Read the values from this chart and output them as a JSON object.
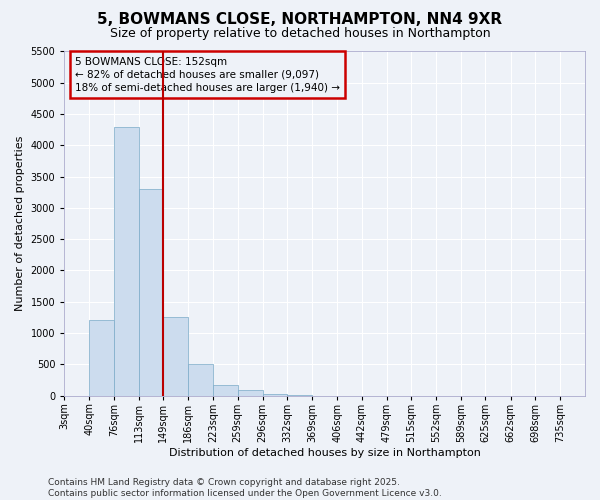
{
  "title": "5, BOWMANS CLOSE, NORTHAMPTON, NN4 9XR",
  "subtitle": "Size of property relative to detached houses in Northampton",
  "xlabel": "Distribution of detached houses by size in Northampton",
  "ylabel": "Number of detached properties",
  "categories": [
    "3sqm",
    "40sqm",
    "76sqm",
    "113sqm",
    "149sqm",
    "186sqm",
    "223sqm",
    "259sqm",
    "296sqm",
    "332sqm",
    "369sqm",
    "406sqm",
    "442sqm",
    "479sqm",
    "515sqm",
    "552sqm",
    "589sqm",
    "625sqm",
    "662sqm",
    "698sqm",
    "735sqm"
  ],
  "bin_edges": [
    3,
    40,
    76,
    113,
    149,
    186,
    223,
    259,
    296,
    332,
    369,
    406,
    442,
    479,
    515,
    552,
    589,
    625,
    662,
    698,
    735,
    772
  ],
  "bar_heights": [
    0,
    1200,
    4300,
    3300,
    1250,
    500,
    160,
    80,
    30,
    5,
    0,
    0,
    0,
    0,
    0,
    0,
    0,
    0,
    0,
    0,
    0
  ],
  "bar_color": "#ccdcee",
  "bar_edge_color": "#7aaac8",
  "vline_x": 149,
  "vline_color": "#bb0000",
  "ylim": [
    0,
    5500
  ],
  "yticks": [
    0,
    500,
    1000,
    1500,
    2000,
    2500,
    3000,
    3500,
    4000,
    4500,
    5000,
    5500
  ],
  "annotation_text": "5 BOWMANS CLOSE: 152sqm\n← 82% of detached houses are smaller (9,097)\n18% of semi-detached houses are larger (1,940) →",
  "annotation_box_color": "#cc0000",
  "footer_line1": "Contains HM Land Registry data © Crown copyright and database right 2025.",
  "footer_line2": "Contains public sector information licensed under the Open Government Licence v3.0.",
  "bg_color": "#eef2f8",
  "grid_color": "#ffffff",
  "title_fontsize": 11,
  "subtitle_fontsize": 9,
  "axis_label_fontsize": 8,
  "tick_fontsize": 7,
  "annotation_fontsize": 7.5,
  "footer_fontsize": 6.5
}
